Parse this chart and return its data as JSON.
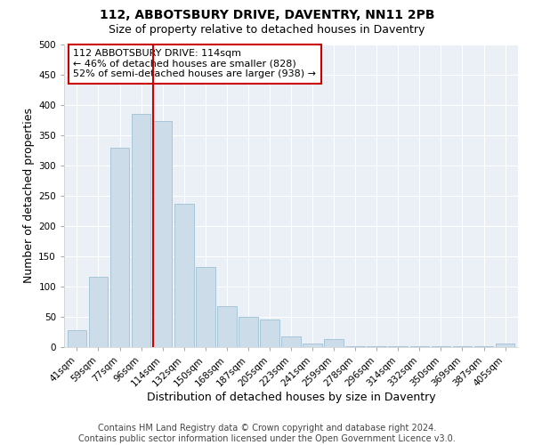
{
  "title": "112, ABBOTSBURY DRIVE, DAVENTRY, NN11 2PB",
  "subtitle": "Size of property relative to detached houses in Daventry",
  "xlabel": "Distribution of detached houses by size in Daventry",
  "ylabel": "Number of detached properties",
  "bar_labels": [
    "41sqm",
    "59sqm",
    "77sqm",
    "96sqm",
    "114sqm",
    "132sqm",
    "150sqm",
    "168sqm",
    "187sqm",
    "205sqm",
    "223sqm",
    "241sqm",
    "259sqm",
    "278sqm",
    "296sqm",
    "314sqm",
    "332sqm",
    "350sqm",
    "369sqm",
    "387sqm",
    "405sqm"
  ],
  "bar_values": [
    28,
    116,
    330,
    385,
    373,
    237,
    133,
    68,
    50,
    45,
    17,
    6,
    13,
    2,
    2,
    2,
    1,
    1,
    1,
    1,
    6
  ],
  "bar_color": "#ccdce8",
  "bar_edge_color": "#a8c4d8",
  "ylim": [
    0,
    500
  ],
  "yticks": [
    0,
    50,
    100,
    150,
    200,
    250,
    300,
    350,
    400,
    450,
    500
  ],
  "vline_color": "#cc0000",
  "annotation_title": "112 ABBOTSBURY DRIVE: 114sqm",
  "annotation_line1": "← 46% of detached houses are smaller (828)",
  "annotation_line2": "52% of semi-detached houses are larger (938) →",
  "annotation_box_color": "#ffffff",
  "annotation_box_edge": "#cc0000",
  "footer_line1": "Contains HM Land Registry data © Crown copyright and database right 2024.",
  "footer_line2": "Contains public sector information licensed under the Open Government Licence v3.0.",
  "fig_background": "#ffffff",
  "axes_background": "#eaf0f6",
  "grid_color": "#ffffff",
  "title_fontsize": 10,
  "subtitle_fontsize": 9,
  "axis_label_fontsize": 9,
  "tick_fontsize": 7.5,
  "annotation_fontsize": 8,
  "footer_fontsize": 7
}
